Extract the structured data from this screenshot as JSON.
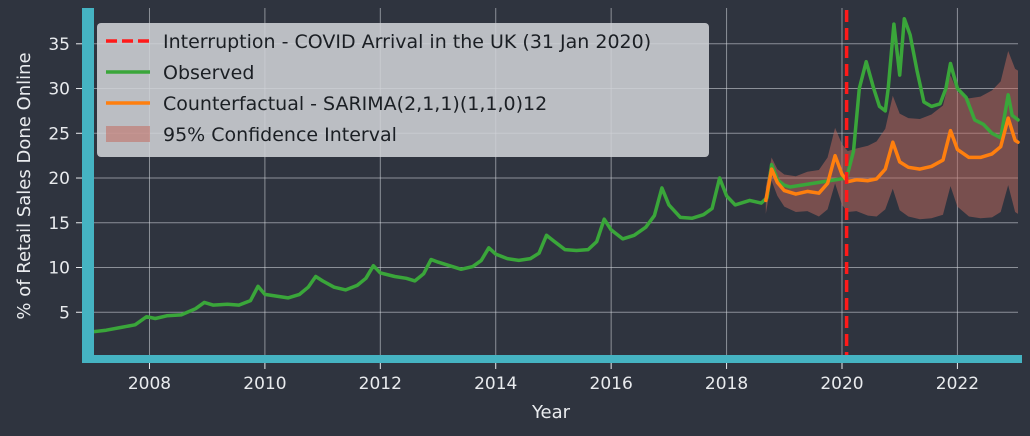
{
  "chart_data": {
    "type": "line",
    "title": "",
    "xlabel": "Year",
    "ylabel": "% of Retail Sales Done Online",
    "xlim": [
      2006.9,
      2023.05
    ],
    "ylim": [
      0,
      39
    ],
    "x_ticks": [
      2008,
      2010,
      2012,
      2014,
      2016,
      2018,
      2020,
      2022
    ],
    "y_ticks": [
      5,
      10,
      15,
      20,
      25,
      30,
      35
    ],
    "grid": true,
    "legend_position": "top-left",
    "interruption": {
      "x": 2020.08,
      "label": "Interruption - COVID Arrival in the UK (31 Jan 2020)",
      "color": "#ff1a1a"
    },
    "series": [
      {
        "name": "Observed",
        "color": "#3aa63a",
        "points": [
          [
            2007.0,
            2.8
          ],
          [
            2007.25,
            3.0
          ],
          [
            2007.5,
            3.3
          ],
          [
            2007.75,
            3.6
          ],
          [
            2007.95,
            4.5
          ],
          [
            2008.1,
            4.3
          ],
          [
            2008.3,
            4.6
          ],
          [
            2008.55,
            4.7
          ],
          [
            2008.8,
            5.4
          ],
          [
            2008.95,
            6.1
          ],
          [
            2009.1,
            5.8
          ],
          [
            2009.35,
            5.9
          ],
          [
            2009.55,
            5.8
          ],
          [
            2009.75,
            6.3
          ],
          [
            2009.88,
            7.9
          ],
          [
            2010.0,
            7.0
          ],
          [
            2010.2,
            6.8
          ],
          [
            2010.4,
            6.6
          ],
          [
            2010.6,
            7.0
          ],
          [
            2010.75,
            7.8
          ],
          [
            2010.88,
            9.0
          ],
          [
            2011.0,
            8.5
          ],
          [
            2011.2,
            7.8
          ],
          [
            2011.4,
            7.5
          ],
          [
            2011.6,
            8.0
          ],
          [
            2011.75,
            8.8
          ],
          [
            2011.88,
            10.2
          ],
          [
            2012.0,
            9.4
          ],
          [
            2012.25,
            9.0
          ],
          [
            2012.45,
            8.8
          ],
          [
            2012.6,
            8.5
          ],
          [
            2012.75,
            9.3
          ],
          [
            2012.88,
            10.9
          ],
          [
            2013.0,
            10.6
          ],
          [
            2013.2,
            10.2
          ],
          [
            2013.4,
            9.8
          ],
          [
            2013.6,
            10.1
          ],
          [
            2013.75,
            10.8
          ],
          [
            2013.88,
            12.2
          ],
          [
            2014.0,
            11.5
          ],
          [
            2014.2,
            11.0
          ],
          [
            2014.4,
            10.8
          ],
          [
            2014.6,
            11.0
          ],
          [
            2014.75,
            11.6
          ],
          [
            2014.88,
            13.6
          ],
          [
            2015.0,
            13.0
          ],
          [
            2015.2,
            12.0
          ],
          [
            2015.4,
            11.9
          ],
          [
            2015.6,
            12.0
          ],
          [
            2015.75,
            12.9
          ],
          [
            2015.88,
            15.4
          ],
          [
            2016.0,
            14.2
          ],
          [
            2016.2,
            13.2
          ],
          [
            2016.4,
            13.6
          ],
          [
            2016.6,
            14.5
          ],
          [
            2016.75,
            15.8
          ],
          [
            2016.88,
            18.9
          ],
          [
            2017.0,
            17.0
          ],
          [
            2017.2,
            15.6
          ],
          [
            2017.4,
            15.5
          ],
          [
            2017.6,
            15.9
          ],
          [
            2017.75,
            16.6
          ],
          [
            2017.88,
            20.0
          ],
          [
            2018.0,
            18.0
          ],
          [
            2018.15,
            17.0
          ],
          [
            2018.4,
            17.5
          ],
          [
            2018.6,
            17.2
          ],
          [
            2018.7,
            17.8
          ],
          [
            2018.78,
            21.5
          ],
          [
            2018.88,
            19.8
          ],
          [
            2019.0,
            19.2
          ],
          [
            2019.1,
            19.0
          ],
          [
            2020.08,
            20.0
          ],
          [
            2020.2,
            23.0
          ],
          [
            2020.3,
            30.0
          ],
          [
            2020.42,
            33.0
          ],
          [
            2020.55,
            30.0
          ],
          [
            2020.65,
            28.0
          ],
          [
            2020.75,
            27.5
          ],
          [
            2020.8,
            30.0
          ],
          [
            2020.9,
            37.2
          ],
          [
            2021.0,
            31.5
          ],
          [
            2021.08,
            37.8
          ],
          [
            2021.18,
            36.0
          ],
          [
            2021.3,
            32.0
          ],
          [
            2021.42,
            28.5
          ],
          [
            2021.55,
            28.0
          ],
          [
            2021.7,
            28.3
          ],
          [
            2021.8,
            30.0
          ],
          [
            2021.88,
            32.8
          ],
          [
            2022.0,
            30.0
          ],
          [
            2022.15,
            29.0
          ],
          [
            2022.3,
            26.5
          ],
          [
            2022.45,
            26.0
          ],
          [
            2022.6,
            25.0
          ],
          [
            2022.75,
            24.5
          ],
          [
            2022.88,
            29.3
          ],
          [
            2022.95,
            27.0
          ],
          [
            2023.05,
            26.5
          ]
        ]
      },
      {
        "name": "Counterfactual - SARIMA(2,1,1)(1,1,0)12",
        "color": "#ff7f0e",
        "points": [
          [
            2018.68,
            17.5
          ],
          [
            2018.78,
            21.0
          ],
          [
            2018.88,
            19.5
          ],
          [
            2019.0,
            18.6
          ],
          [
            2019.2,
            18.2
          ],
          [
            2019.4,
            18.5
          ],
          [
            2019.6,
            18.3
          ],
          [
            2019.75,
            19.4
          ],
          [
            2019.88,
            22.5
          ],
          [
            2020.0,
            20.4
          ],
          [
            2020.1,
            19.6
          ],
          [
            2020.25,
            19.8
          ],
          [
            2020.45,
            19.7
          ],
          [
            2020.6,
            19.9
          ],
          [
            2020.75,
            21.0
          ],
          [
            2020.88,
            24.0
          ],
          [
            2021.0,
            21.8
          ],
          [
            2021.15,
            21.2
          ],
          [
            2021.35,
            21.0
          ],
          [
            2021.55,
            21.3
          ],
          [
            2021.75,
            22.0
          ],
          [
            2021.88,
            25.3
          ],
          [
            2022.0,
            23.2
          ],
          [
            2022.2,
            22.3
          ],
          [
            2022.4,
            22.3
          ],
          [
            2022.6,
            22.7
          ],
          [
            2022.75,
            23.5
          ],
          [
            2022.88,
            26.7
          ],
          [
            2023.0,
            24.2
          ],
          [
            2023.05,
            24.0
          ]
        ]
      }
    ],
    "confidence_interval": {
      "name": "95% Confidence Interval",
      "color": "#c26a5e",
      "upper": [
        [
          2018.68,
          19.0
        ],
        [
          2018.78,
          22.3
        ],
        [
          2018.88,
          21.0
        ],
        [
          2019.0,
          20.4
        ],
        [
          2019.2,
          20.2
        ],
        [
          2019.4,
          20.7
        ],
        [
          2019.6,
          20.9
        ],
        [
          2019.75,
          22.3
        ],
        [
          2019.88,
          25.6
        ],
        [
          2020.0,
          23.8
        ],
        [
          2020.1,
          23.0
        ],
        [
          2020.25,
          23.3
        ],
        [
          2020.45,
          23.6
        ],
        [
          2020.6,
          24.1
        ],
        [
          2020.75,
          25.5
        ],
        [
          2020.88,
          29.2
        ],
        [
          2021.0,
          27.2
        ],
        [
          2021.15,
          26.7
        ],
        [
          2021.35,
          26.6
        ],
        [
          2021.55,
          27.1
        ],
        [
          2021.75,
          28.1
        ],
        [
          2021.88,
          31.5
        ],
        [
          2022.0,
          29.6
        ],
        [
          2022.2,
          28.9
        ],
        [
          2022.4,
          29.1
        ],
        [
          2022.6,
          29.8
        ],
        [
          2022.75,
          30.8
        ],
        [
          2022.88,
          34.2
        ],
        [
          2023.0,
          32.2
        ],
        [
          2023.05,
          32.0
        ]
      ],
      "lower": [
        [
          2018.68,
          16.0
        ],
        [
          2018.78,
          19.7
        ],
        [
          2018.88,
          18.0
        ],
        [
          2019.0,
          16.8
        ],
        [
          2019.2,
          16.2
        ],
        [
          2019.4,
          16.3
        ],
        [
          2019.6,
          15.7
        ],
        [
          2019.75,
          16.5
        ],
        [
          2019.88,
          19.4
        ],
        [
          2020.0,
          17.0
        ],
        [
          2020.1,
          16.2
        ],
        [
          2020.25,
          16.3
        ],
        [
          2020.45,
          15.8
        ],
        [
          2020.6,
          15.7
        ],
        [
          2020.75,
          16.5
        ],
        [
          2020.88,
          18.8
        ],
        [
          2021.0,
          16.4
        ],
        [
          2021.15,
          15.7
        ],
        [
          2021.35,
          15.4
        ],
        [
          2021.55,
          15.5
        ],
        [
          2021.75,
          15.9
        ],
        [
          2021.88,
          19.1
        ],
        [
          2022.0,
          16.8
        ],
        [
          2022.2,
          15.7
        ],
        [
          2022.4,
          15.5
        ],
        [
          2022.6,
          15.6
        ],
        [
          2022.75,
          16.2
        ],
        [
          2022.88,
          19.2
        ],
        [
          2023.0,
          16.2
        ],
        [
          2023.05,
          16.0
        ]
      ]
    },
    "legend": [
      {
        "label": "Interruption - COVID Arrival in the UK (31 Jan 2020)",
        "style": "dashed",
        "color": "#ff1a1a"
      },
      {
        "label": "Observed",
        "style": "line",
        "color": "#3aa63a"
      },
      {
        "label": "Counterfactual - SARIMA(2,1,1)(1,1,0)12",
        "style": "line",
        "color": "#ff7f0e"
      },
      {
        "label": "95% Confidence Interval",
        "style": "patch",
        "color": "#c26a5e"
      }
    ]
  }
}
